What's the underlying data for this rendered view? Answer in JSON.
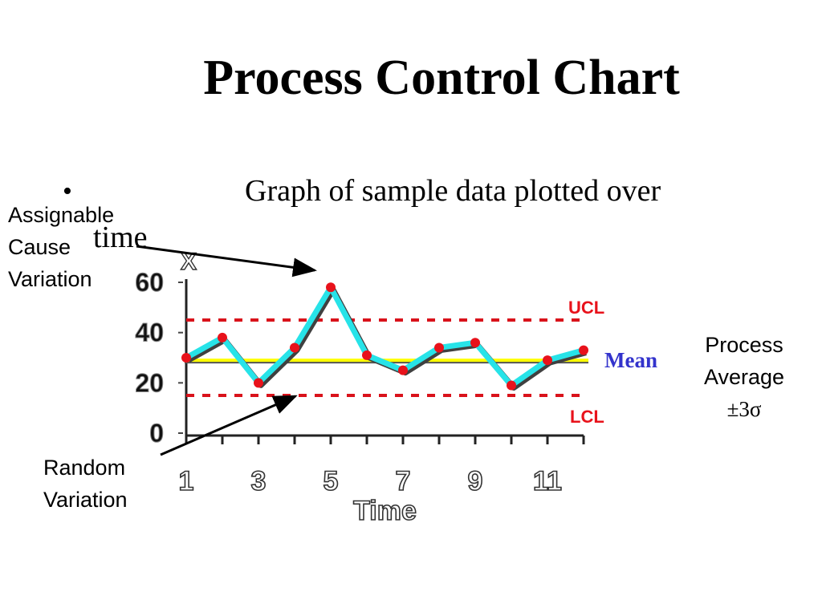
{
  "slide": {
    "title": "Process Control Chart",
    "bullet_symbol": "•",
    "bullet_text_line1": "Graph of sample data plotted over",
    "bullet_text_line2": "time"
  },
  "annotations": {
    "assignable_lines": [
      "Assignable",
      "Cause",
      "Variation"
    ],
    "random_lines": [
      "Random",
      "Variation"
    ],
    "process_lines": [
      "Process",
      "Average",
      "±3σ"
    ]
  },
  "colors": {
    "series_line": "#27e3e8",
    "series_shadow": "#404040",
    "points": "#e8121b",
    "control_limits": "#d9121b",
    "mean_line": "#ffff00",
    "mean_label": "#3333cc",
    "limit_labels": "#e8121b"
  },
  "chart_data": {
    "type": "line",
    "title": "",
    "xlabel": "Time",
    "ylabel": "X",
    "x": [
      1,
      2,
      3,
      4,
      5,
      6,
      7,
      8,
      9,
      10,
      11,
      12
    ],
    "series": [
      {
        "values": [
          30,
          38,
          20,
          34,
          58,
          31,
          25,
          34,
          36,
          19,
          29,
          33
        ]
      }
    ],
    "xticks": [
      "1",
      "3",
      "5",
      "7",
      "9",
      "11"
    ],
    "yticks": [
      "0",
      "20",
      "40",
      "60"
    ],
    "xlim": [
      1,
      12
    ],
    "ylim": [
      0,
      60
    ],
    "ucl": 45,
    "lcl": 15,
    "mean": 29,
    "ucl_label": "UCL",
    "lcl_label": "LCL",
    "mean_label": "Mean",
    "grid": false
  }
}
